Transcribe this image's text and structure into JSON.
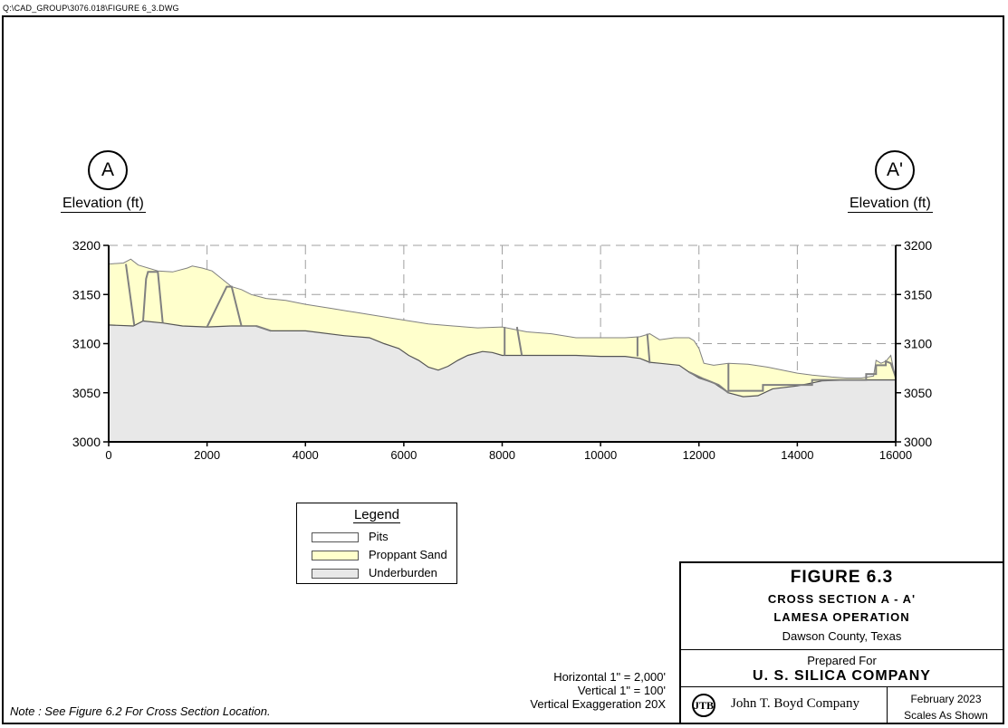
{
  "drawing": {
    "file_path": "Q:\\CAD_GROUP\\3076.018\\FIGURE 6_3.DWG"
  },
  "section": {
    "left_marker": "A",
    "right_marker": "A'",
    "left_axis_label": "Elevation (ft)",
    "right_axis_label": "Elevation (ft)"
  },
  "chart_data": {
    "type": "area",
    "xlim": [
      0,
      16000
    ],
    "ylim": [
      3000,
      3200
    ],
    "x_ticks": [
      "0",
      "2000",
      "4000",
      "6000",
      "8000",
      "10000",
      "12000",
      "14000",
      "16000"
    ],
    "y_ticks": [
      "3200",
      "3150",
      "3100",
      "3050",
      "3000"
    ],
    "grid": true,
    "series": [
      {
        "name": "Proppant Sand",
        "color": "#ffffcc",
        "top_profile": [
          [
            0,
            3181
          ],
          [
            300,
            3182
          ],
          [
            450,
            3186
          ],
          [
            600,
            3180
          ],
          [
            1000,
            3174
          ],
          [
            1300,
            3173
          ],
          [
            1600,
            3177
          ],
          [
            1700,
            3179
          ],
          [
            1900,
            3177
          ],
          [
            2100,
            3174
          ],
          [
            2300,
            3166
          ],
          [
            2500,
            3158
          ],
          [
            2700,
            3155
          ],
          [
            2900,
            3150
          ],
          [
            3200,
            3146
          ],
          [
            3600,
            3144
          ],
          [
            4000,
            3140
          ],
          [
            4500,
            3136
          ],
          [
            5000,
            3132
          ],
          [
            5500,
            3128
          ],
          [
            6000,
            3124
          ],
          [
            6500,
            3120
          ],
          [
            7000,
            3118
          ],
          [
            7500,
            3116
          ],
          [
            8000,
            3117
          ],
          [
            8500,
            3112
          ],
          [
            9000,
            3110
          ],
          [
            9500,
            3106
          ],
          [
            10000,
            3106
          ],
          [
            10500,
            3106
          ],
          [
            10800,
            3107
          ],
          [
            11000,
            3110
          ],
          [
            11200,
            3104
          ],
          [
            11500,
            3106
          ],
          [
            11800,
            3106
          ],
          [
            11900,
            3103
          ],
          [
            12000,
            3095
          ],
          [
            12100,
            3080
          ],
          [
            12300,
            3078
          ],
          [
            12600,
            3080
          ],
          [
            13000,
            3079
          ],
          [
            13400,
            3076
          ],
          [
            14000,
            3070
          ],
          [
            14300,
            3068
          ],
          [
            14700,
            3066
          ],
          [
            15000,
            3065
          ],
          [
            15300,
            3065
          ],
          [
            15550,
            3067
          ],
          [
            15600,
            3083
          ],
          [
            15700,
            3080
          ],
          [
            15800,
            3082
          ],
          [
            15900,
            3088
          ],
          [
            16000,
            3063
          ]
        ]
      },
      {
        "name": "Underburden",
        "color": "#e8e8e8",
        "top_profile": [
          [
            0,
            3119
          ],
          [
            500,
            3118
          ],
          [
            700,
            3123
          ],
          [
            1100,
            3121
          ],
          [
            1500,
            3118
          ],
          [
            2000,
            3117
          ],
          [
            2500,
            3118
          ],
          [
            3000,
            3118
          ],
          [
            3300,
            3113
          ],
          [
            4000,
            3113
          ],
          [
            4800,
            3108
          ],
          [
            5300,
            3106
          ],
          [
            5600,
            3100
          ],
          [
            5900,
            3095
          ],
          [
            6100,
            3088
          ],
          [
            6300,
            3083
          ],
          [
            6500,
            3076
          ],
          [
            6700,
            3073
          ],
          [
            6900,
            3077
          ],
          [
            7100,
            3083
          ],
          [
            7300,
            3088
          ],
          [
            7600,
            3092
          ],
          [
            7800,
            3091
          ],
          [
            8000,
            3088
          ],
          [
            8500,
            3088
          ],
          [
            9000,
            3088
          ],
          [
            9500,
            3088
          ],
          [
            10000,
            3087
          ],
          [
            10500,
            3087
          ],
          [
            10800,
            3085
          ],
          [
            11000,
            3081
          ],
          [
            11200,
            3080
          ],
          [
            11600,
            3078
          ],
          [
            11800,
            3071
          ],
          [
            12000,
            3065
          ],
          [
            12300,
            3060
          ],
          [
            12600,
            3050
          ],
          [
            12900,
            3046
          ],
          [
            13200,
            3047
          ],
          [
            13500,
            3054
          ],
          [
            14000,
            3057
          ],
          [
            14500,
            3062
          ],
          [
            15000,
            3063
          ],
          [
            16000,
            3063
          ]
        ]
      },
      {
        "name": "Pits",
        "color": "#ffffff"
      }
    ]
  },
  "legend": {
    "title": "Legend",
    "items": [
      {
        "label": "Pits",
        "color": "#ffffff"
      },
      {
        "label": "Proppant Sand",
        "color": "#ffffcc"
      },
      {
        "label": "Underburden",
        "color": "#e8e8e8"
      }
    ]
  },
  "scale": {
    "horizontal": "Horizontal  1\" = 2,000'",
    "vertical": "Vertical  1\" = 100'",
    "exaggeration": "Vertical Exaggeration 20X"
  },
  "note": "Note : See Figure 6.2 For Cross Section Location.",
  "title_block": {
    "figure": "FIGURE 6.3",
    "line1": "CROSS SECTION A - A'",
    "line2": "LAMESA OPERATION",
    "county": "Dawson County, Texas",
    "prepared_for": "Prepared For",
    "client": "U. S. SILICA COMPANY",
    "logo_text": "JTB",
    "firm": "John T. Boyd Company",
    "date": "February 2023",
    "scales": "Scales As Shown"
  },
  "colors": {
    "sand": "#ffffcc",
    "underburden": "#e8e8e8",
    "pit_outline": "#808080",
    "grid": "#a0a0a0"
  }
}
